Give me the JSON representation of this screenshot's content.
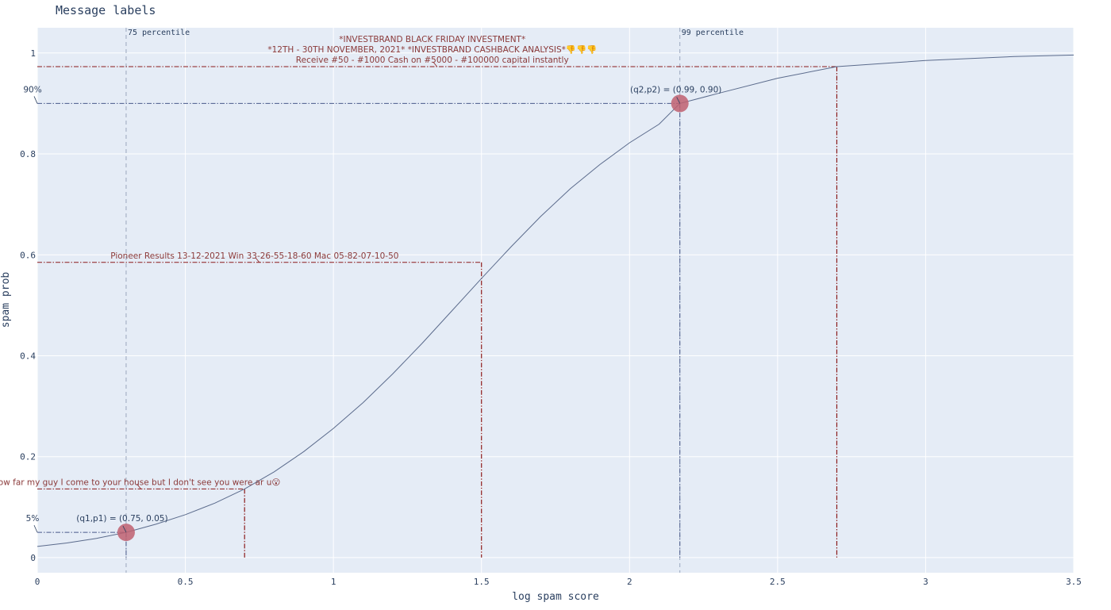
{
  "chart_data": {
    "type": "line",
    "title": "Message labels",
    "xlabel": "log spam score",
    "ylabel": "spam prob",
    "xlim": [
      0,
      3.5
    ],
    "ylim": [
      -0.03,
      1.05
    ],
    "grid": true,
    "x_ticks": [
      {
        "value": 0,
        "label": "0"
      },
      {
        "value": 0.5,
        "label": "0.5"
      },
      {
        "value": 1,
        "label": "1"
      },
      {
        "value": 1.5,
        "label": "1.5"
      },
      {
        "value": 2,
        "label": "2"
      },
      {
        "value": 2.5,
        "label": "2.5"
      },
      {
        "value": 3,
        "label": "3"
      },
      {
        "value": 3.5,
        "label": "3.5"
      }
    ],
    "y_ticks": [
      {
        "value": 0,
        "label": "0"
      },
      {
        "value": 0.2,
        "label": "0.2"
      },
      {
        "value": 0.4,
        "label": "0.4"
      },
      {
        "value": 0.6,
        "label": "0.6"
      },
      {
        "value": 0.8,
        "label": "0.8"
      },
      {
        "value": 1,
        "label": "1"
      }
    ],
    "curve": {
      "x": [
        0,
        0.1,
        0.2,
        0.3,
        0.4,
        0.5,
        0.6,
        0.7,
        0.8,
        0.9,
        1.0,
        1.1,
        1.2,
        1.3,
        1.4,
        1.5,
        1.6,
        1.7,
        1.8,
        1.9,
        2.0,
        2.1,
        2.17,
        2.3,
        2.5,
        2.7,
        3.0,
        3.3,
        3.5
      ],
      "y": [
        0.022,
        0.029,
        0.038,
        0.05,
        0.066,
        0.085,
        0.108,
        0.136,
        0.17,
        0.21,
        0.256,
        0.307,
        0.364,
        0.425,
        0.489,
        0.553,
        0.616,
        0.676,
        0.731,
        0.779,
        0.822,
        0.859,
        0.9,
        0.92,
        0.95,
        0.973,
        0.985,
        0.993,
        0.996
      ]
    },
    "percentile_lines": [
      {
        "x": 0.3,
        "label": "75 percentile"
      },
      {
        "x": 2.17,
        "label": "99 percentile"
      }
    ],
    "key_points": [
      {
        "x": 0.3,
        "y": 0.05,
        "label": "(q1,p1) = (0.75, 0.05)",
        "edge_label": "5%"
      },
      {
        "x": 2.17,
        "y": 0.9,
        "label": "(q2,p2) = (0.99, 0.90)",
        "edge_label": "90%"
      }
    ],
    "annotations": [
      {
        "x": 0.7,
        "y": 0.136,
        "lines": [
          "How far my guy I come to your house but I don't see you were ar u😮"
        ]
      },
      {
        "x": 1.5,
        "y": 0.585,
        "lines": [
          "Pioneer Results  13-12-2021 Win  33-26-55-18-60 Mac 05-82-07-10-50"
        ]
      },
      {
        "x": 2.7,
        "y": 0.973,
        "lines": [
          "*INVESTBRAND BLACK FRIDAY INVESTMENT*",
          "*12TH - 30TH NOVEMBER, 2021*  *INVESTBRAND CASHBACK ANALYSIS*👎👎👎",
          "Receive #50 - #1000 Cash on #5000 - #100000 capital instantly"
        ]
      }
    ],
    "colors": {
      "plot_bg": "#e5ecf6",
      "grid": "#ffffff",
      "curve": "#5b6b8c",
      "annotation": "#8b1a1a",
      "guide": "#4a5a8a",
      "marker": "#c06070"
    }
  }
}
